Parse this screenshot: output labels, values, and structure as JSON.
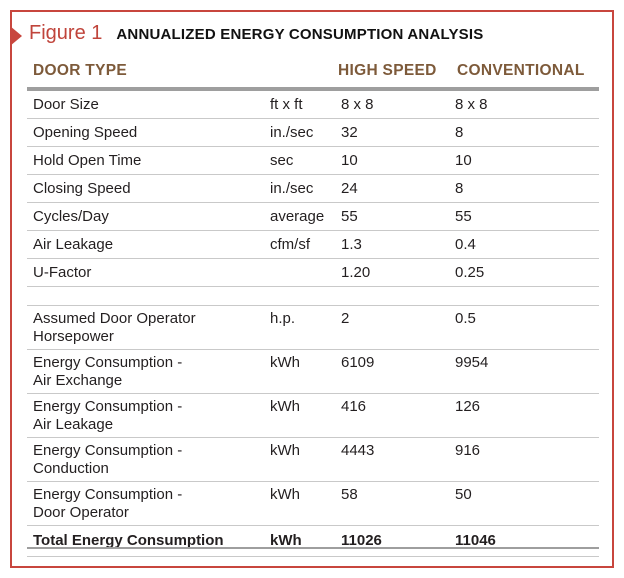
{
  "figure": {
    "label": "Figure 1",
    "title": "ANNUALIZED ENERGY CONSUMPTION ANALYSIS"
  },
  "table": {
    "headers": [
      "DOOR TYPE",
      "",
      "HIGH SPEED",
      "CONVENTIONAL"
    ],
    "rows": [
      {
        "label": "Door Size",
        "unit": "ft x ft",
        "high_speed": "8 x 8",
        "conventional": "8 x 8"
      },
      {
        "label": "Opening Speed",
        "unit": "in./sec",
        "high_speed": "32",
        "conventional": "8"
      },
      {
        "label": "Hold Open Time",
        "unit": "sec",
        "high_speed": "10",
        "conventional": "10"
      },
      {
        "label": "Closing Speed",
        "unit": "in./sec",
        "high_speed": "24",
        "conventional": "8"
      },
      {
        "label": "Cycles/Day",
        "unit": "average",
        "high_speed": "55",
        "conventional": "55"
      },
      {
        "label": "Air Leakage",
        "unit": "cfm/sf",
        "high_speed": "1.3",
        "conventional": "0.4"
      },
      {
        "label": "U-Factor",
        "unit": "",
        "high_speed": "1.20",
        "conventional": "0.25"
      }
    ],
    "rows2": [
      {
        "label1": "Assumed Door Operator",
        "label2": "Horsepower",
        "unit": "h.p.",
        "high_speed": "2",
        "conventional": "0.5"
      },
      {
        "label1": "Energy Consumption -",
        "label2": "Air Exchange",
        "unit": "kWh",
        "high_speed": "6109",
        "conventional": "9954"
      },
      {
        "label1": "Energy Consumption -",
        "label2": "Air Leakage",
        "unit": "kWh",
        "high_speed": "416",
        "conventional": "126"
      },
      {
        "label1": "Energy Consumption -",
        "label2": "Conduction",
        "unit": "kWh",
        "high_speed": "4443",
        "conventional": "916"
      },
      {
        "label1": "Energy Consumption -",
        "label2": "Door Operator",
        "unit": "kWh",
        "high_speed": "58",
        "conventional": "50"
      }
    ],
    "total": {
      "label": "Total Energy Consumption",
      "unit": "kWh",
      "high_speed": "11026",
      "conventional": "11046"
    }
  },
  "colors": {
    "accent": "#c8463e",
    "header_text": "#7d5a3a",
    "rule": "#9e9e9e"
  }
}
